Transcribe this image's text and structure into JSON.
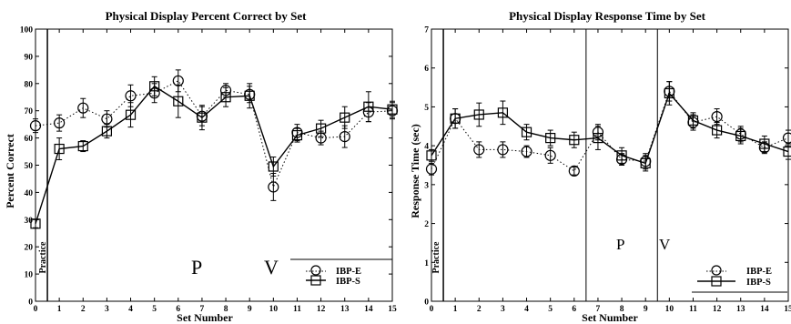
{
  "chart_data": [
    {
      "type": "line",
      "title": "Physical Display Percent Correct by Set",
      "xlabel": "Set Number",
      "ylabel": "Percent Correct",
      "xlim": [
        0,
        15
      ],
      "ylim": [
        0,
        100
      ],
      "xticks": [
        "0",
        "1",
        "2",
        "3",
        "4",
        "5",
        "6",
        "7",
        "8",
        "9",
        "10",
        "11",
        "12",
        "13",
        "14",
        "15"
      ],
      "yticks": [
        "0",
        "10",
        "20",
        "30",
        "40",
        "50",
        "60",
        "70",
        "80",
        "90",
        "100"
      ],
      "x": [
        0,
        1,
        2,
        3,
        4,
        5,
        6,
        7,
        8,
        9,
        10,
        11,
        12,
        13,
        14,
        15
      ],
      "series": [
        {
          "name": "IBP-E",
          "marker": "circle",
          "line": "dotted",
          "values": [
            64.5,
            65.5,
            71,
            67,
            75.5,
            76.5,
            81,
            68,
            77.5,
            76,
            42,
            62,
            60,
            60.5,
            69.5,
            70
          ],
          "errors": [
            2.5,
            3,
            3.5,
            3,
            4,
            3.5,
            4,
            3.5,
            2.5,
            3,
            5,
            3,
            2.5,
            4,
            3.5,
            3
          ]
        },
        {
          "name": "IBP-S",
          "marker": "square",
          "line": "solid",
          "values": [
            28.5,
            56,
            57,
            62.5,
            68.5,
            79,
            73.5,
            67.5,
            75,
            75.5,
            49.5,
            61,
            63.5,
            67.5,
            71.5,
            70.5
          ],
          "errors": [
            1.5,
            4,
            2,
            2.5,
            4.5,
            3.5,
            6,
            4.5,
            3.5,
            4.5,
            3.5,
            2.5,
            3,
            4,
            5.5,
            3
          ]
        }
      ],
      "annotations": [
        "Practice",
        "P",
        "V"
      ],
      "vlines": [
        0.5
      ],
      "legend_position": "bottom-right"
    },
    {
      "type": "line",
      "title": "Physical Display Response Time by Set",
      "xlabel": "Set Number",
      "ylabel": "Response Time (sec)",
      "xlim": [
        0,
        15
      ],
      "ylim": [
        0,
        7
      ],
      "xticks": [
        "0",
        "1",
        "2",
        "3",
        "4",
        "5",
        "6",
        "7",
        "8",
        "9",
        "10",
        "11",
        "12",
        "13",
        "14",
        "15"
      ],
      "yticks": [
        "0",
        "1",
        "2",
        "3",
        "4",
        "5",
        "6",
        "7"
      ],
      "x": [
        0,
        1,
        2,
        3,
        4,
        5,
        6,
        7,
        8,
        9,
        10,
        11,
        12,
        13,
        14,
        15
      ],
      "series": [
        {
          "name": "IBP-E",
          "marker": "circle",
          "line": "dotted",
          "values": [
            3.4,
            4.7,
            3.9,
            3.9,
            3.85,
            3.75,
            3.35,
            4.35,
            3.65,
            3.6,
            5.4,
            4.6,
            4.75,
            4.3,
            3.95,
            4.2
          ],
          "errors": [
            0.15,
            0.25,
            0.2,
            0.2,
            0.15,
            0.2,
            0.1,
            0.2,
            0.15,
            0.2,
            0.25,
            0.2,
            0.2,
            0.2,
            0.15,
            0.2
          ]
        },
        {
          "name": "IBP-S",
          "marker": "square",
          "line": "solid",
          "values": [
            3.75,
            4.7,
            4.8,
            4.85,
            4.35,
            4.2,
            4.15,
            4.2,
            3.75,
            3.55,
            5.35,
            4.65,
            4.4,
            4.25,
            4.05,
            3.85
          ],
          "errors": [
            0.15,
            0.25,
            0.3,
            0.3,
            0.2,
            0.2,
            0.2,
            0.3,
            0.2,
            0.2,
            0.3,
            0.2,
            0.2,
            0.2,
            0.2,
            0.2
          ]
        }
      ],
      "annotations": [
        "Practice",
        "P",
        "V"
      ],
      "vlines": [
        0.5,
        6.5,
        9.5
      ],
      "legend_position": "bottom-right"
    }
  ]
}
